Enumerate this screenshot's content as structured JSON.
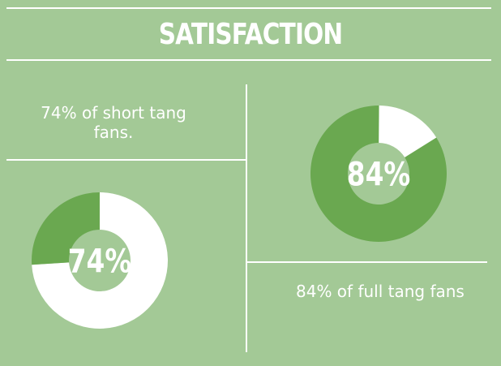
{
  "header": {
    "title": "SATISFACTION"
  },
  "captions": {
    "short": "74% of short tang fans.",
    "full": "84% of full tang fans"
  },
  "colors": {
    "background": "#a3c996",
    "accent": "#6aa850",
    "track": "#ffffff"
  },
  "chart_data": [
    {
      "type": "pie",
      "label": "74%",
      "values": [
        74,
        26
      ],
      "categories": [
        "white",
        "green"
      ]
    },
    {
      "type": "pie",
      "label": "84%",
      "values": [
        84,
        16
      ],
      "categories": [
        "green",
        "white"
      ]
    }
  ]
}
